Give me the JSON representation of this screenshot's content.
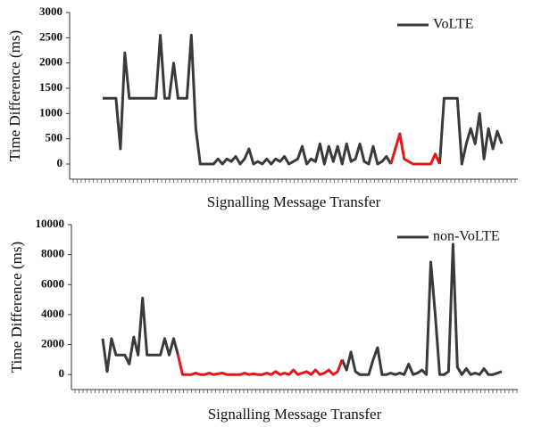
{
  "chart_data": [
    {
      "type": "line",
      "ylabel": "Time Difference (ms)",
      "xlabel": "Signalling Message Transfer",
      "ylim": [
        -300,
        3000
      ],
      "yticks": [
        0,
        500,
        1000,
        1500,
        2000,
        2500,
        3000
      ],
      "legend": "upper right",
      "series": [
        {
          "name": "VoLTE",
          "color": "#3a3a3a",
          "values": [
            1300,
            1300,
            1300,
            1300,
            300,
            2200,
            1300,
            1300,
            1300,
            1300,
            1300,
            1300,
            1300,
            2550,
            1300,
            1300,
            2000,
            1300,
            1300,
            1300,
            2550,
            700,
            0,
            0,
            0,
            0,
            100,
            0,
            100,
            50,
            150,
            0,
            100,
            300,
            0,
            50,
            0,
            100,
            0,
            100,
            50,
            150,
            0,
            50,
            100,
            350,
            0,
            100,
            50,
            400,
            0,
            350,
            50,
            350,
            0,
            400,
            50,
            100,
            400,
            50,
            0,
            350,
            0,
            50,
            150,
            0,
            null,
            null,
            null,
            null,
            null,
            null,
            null,
            null,
            null,
            null,
            0,
            1300,
            1300,
            1300,
            1300,
            0,
            400,
            700,
            400,
            1000,
            100,
            700,
            300,
            650,
            400
          ]
        },
        {
          "color": "#e8141c",
          "values": [
            null,
            null,
            null,
            null,
            null,
            null,
            null,
            null,
            null,
            null,
            null,
            null,
            null,
            null,
            null,
            null,
            null,
            null,
            null,
            null,
            null,
            null,
            null,
            null,
            null,
            null,
            null,
            null,
            null,
            null,
            null,
            null,
            null,
            null,
            null,
            null,
            null,
            null,
            null,
            null,
            null,
            null,
            null,
            null,
            null,
            null,
            null,
            null,
            null,
            null,
            null,
            null,
            null,
            null,
            null,
            null,
            null,
            null,
            null,
            null,
            null,
            null,
            null,
            null,
            null,
            0,
            300,
            600,
            100,
            50,
            0,
            0,
            0,
            0,
            0,
            200,
            0,
            null,
            null,
            null,
            null,
            null,
            null,
            null,
            null,
            null,
            null,
            null,
            null,
            null,
            null
          ]
        }
      ]
    },
    {
      "type": "line",
      "ylabel": "Time Difference (ms)",
      "xlabel": "Signalling Message Transfer",
      "ylim": [
        -1000,
        10000
      ],
      "yticks": [
        0,
        2000,
        4000,
        6000,
        8000,
        10000
      ],
      "legend": "upper right",
      "series": [
        {
          "name": "non-VoLTE",
          "color": "#3a3a3a",
          "values": [
            2400,
            200,
            2400,
            1300,
            1300,
            1300,
            700,
            2500,
            1300,
            5100,
            1300,
            1300,
            1300,
            1300,
            2400,
            1300,
            2400,
            1300,
            null,
            null,
            null,
            null,
            null,
            null,
            null,
            null,
            null,
            null,
            null,
            null,
            null,
            null,
            null,
            null,
            null,
            null,
            null,
            null,
            null,
            null,
            null,
            null,
            null,
            null,
            null,
            null,
            null,
            null,
            null,
            null,
            null,
            null,
            null,
            null,
            1000,
            300,
            1500,
            200,
            0,
            0,
            0,
            1000,
            1800,
            0,
            0,
            100,
            0,
            100,
            0,
            700,
            0,
            100,
            300,
            0,
            7500,
            4000,
            0,
            0,
            200,
            8700,
            500,
            0,
            400,
            0,
            100,
            0,
            400,
            0,
            0,
            100,
            200
          ]
        },
        {
          "color": "#e8141c",
          "values": [
            null,
            null,
            null,
            null,
            null,
            null,
            null,
            null,
            null,
            null,
            null,
            null,
            null,
            null,
            null,
            null,
            null,
            1300,
            0,
            0,
            0,
            100,
            0,
            0,
            100,
            0,
            50,
            100,
            0,
            0,
            0,
            0,
            100,
            0,
            50,
            0,
            0,
            100,
            0,
            200,
            0,
            100,
            0,
            300,
            0,
            100,
            200,
            0,
            300,
            0,
            100,
            300,
            0,
            200,
            1000,
            null,
            null,
            null,
            null,
            null,
            null,
            null,
            null,
            null,
            null,
            null,
            null,
            null,
            null,
            null,
            null,
            null,
            null,
            null,
            null,
            null,
            null,
            null,
            null,
            null,
            null,
            null,
            null,
            null,
            null,
            null,
            null,
            null,
            null,
            null,
            null
          ]
        }
      ]
    }
  ]
}
